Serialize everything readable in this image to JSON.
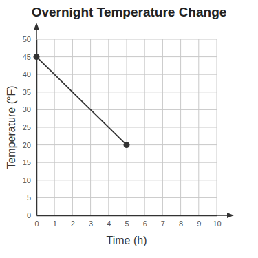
{
  "chart_data": {
    "type": "line",
    "title": "Overnight Temperature Change",
    "x_label": "Time (h)",
    "y_label": "Temperature (°F)",
    "x": [
      0,
      5
    ],
    "values": [
      45,
      20
    ],
    "xlim": [
      0,
      10
    ],
    "ylim": [
      0,
      50
    ],
    "xticks": [
      0,
      1,
      2,
      3,
      4,
      5,
      6,
      7,
      8,
      9,
      10
    ],
    "yticks": [
      0,
      5,
      10,
      15,
      20,
      25,
      30,
      35,
      40,
      45,
      50
    ],
    "grid": true,
    "color": "#333333",
    "marker": "circle"
  }
}
